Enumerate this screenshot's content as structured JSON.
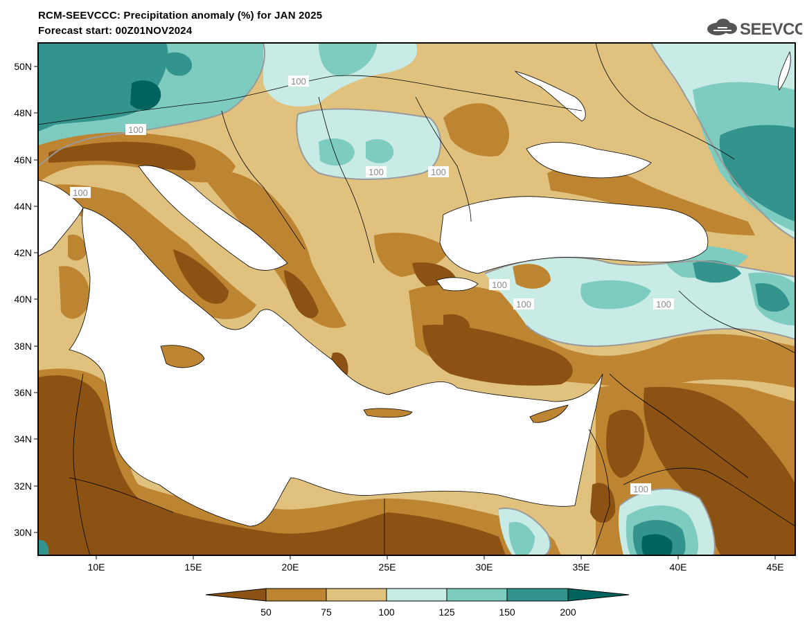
{
  "header": {
    "title": "RCM-SEEVCCC: Precipitation anomaly (%) for JAN 2025",
    "subtitle": "Forecast start: 00Z01NOV2024",
    "logo_text": "SEEVCCC"
  },
  "map": {
    "lon_labels": [
      "10E",
      "15E",
      "20E",
      "25E",
      "30E",
      "35E",
      "40E",
      "45E"
    ],
    "lat_labels": [
      "50N",
      "48N",
      "46N",
      "44N",
      "42N",
      "40N",
      "38N",
      "36N",
      "34N",
      "32N",
      "30N"
    ],
    "contour_label": "100"
  },
  "legend": {
    "labels": [
      "50",
      "75",
      "100",
      "125",
      "150",
      "200"
    ],
    "colors": [
      "#8c5214",
      "#bd8532",
      "#e0c27e",
      "#c8ebe5",
      "#7ecbc0",
      "#33948d",
      "#00645e"
    ]
  },
  "colors": {
    "sea": "#ffffff",
    "frame": "#000000",
    "contour_100": "#9a9a9a"
  }
}
